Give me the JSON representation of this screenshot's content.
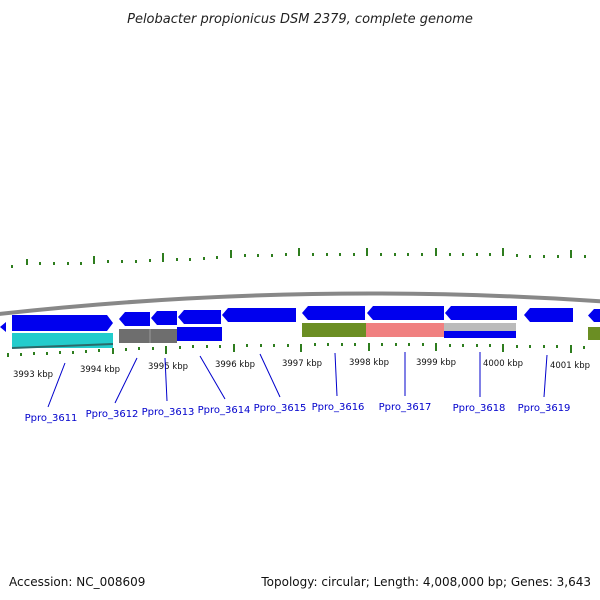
{
  "title": "Pelobacter propionicus DSM 2379, complete genome",
  "footer": {
    "accession": "Accession: NC_008609",
    "summary": "Topology: circular; Length: 4,008,000 bp; Genes: 3,643"
  },
  "colors": {
    "gene_blue": "#0000ee",
    "cyan": "#22cccc",
    "gray": "#6e6e6e",
    "olive": "#6b8e23",
    "salmon": "#f08080",
    "light_gray": "#bbbbbb",
    "tick_green": "#2e7d1e",
    "backbone": "#888888",
    "label_blue": "#0000cc"
  },
  "scale_ticks": [
    {
      "label": "3993 kbp"
    },
    {
      "label": "3994 kbp"
    },
    {
      "label": "3995 kbp"
    },
    {
      "label": "3996 kbp"
    },
    {
      "label": "3997 kbp"
    },
    {
      "label": "3998 kbp"
    },
    {
      "label": "3999 kbp"
    },
    {
      "label": "4000 kbp"
    },
    {
      "label": "4001 kbp"
    }
  ],
  "gene_labels": [
    {
      "label": "Ppro_3611"
    },
    {
      "label": "Ppro_3612"
    },
    {
      "label": "Ppro_3613"
    },
    {
      "label": "Ppro_3614"
    },
    {
      "label": "Ppro_3615"
    },
    {
      "label": "Ppro_3616"
    },
    {
      "label": "Ppro_3617"
    },
    {
      "label": "Ppro_3618"
    },
    {
      "label": "Ppro_3619"
    }
  ]
}
